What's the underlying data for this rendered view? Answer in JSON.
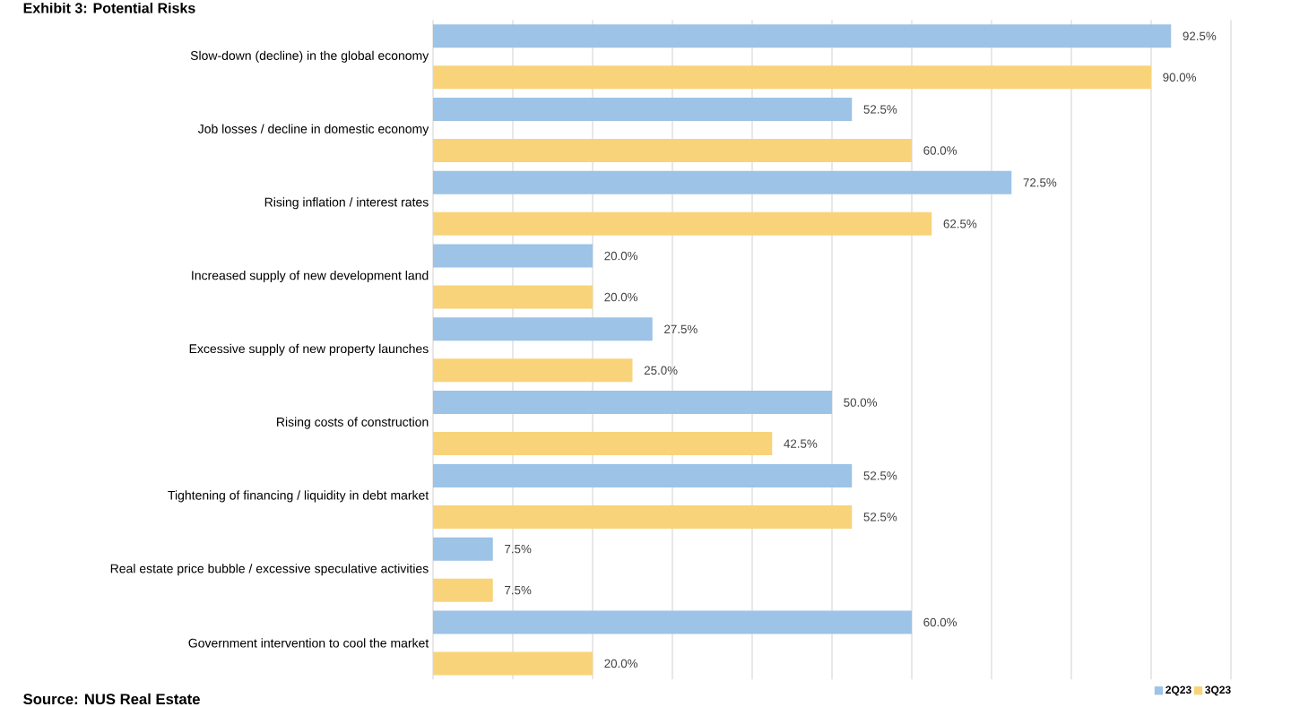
{
  "chart_data": {
    "type": "bar",
    "orientation": "horizontal",
    "title": "Exhibit 3: Potential Risks",
    "categories": [
      "Slow-down (decline) in the global economy",
      "Job losses / decline in domestic economy",
      "Rising inflation / interest rates",
      "Increased supply of new development land",
      "Excessive supply of new property launches",
      "Rising costs of construction",
      "Tightening of financing / liquidity in debt market",
      "Real estate price bubble / excessive speculative activities",
      "Government intervention to cool the market"
    ],
    "series": [
      {
        "name": "2Q23",
        "color": "#9dc3e6",
        "values": [
          92.5,
          52.5,
          72.5,
          20.0,
          27.5,
          50.0,
          52.5,
          7.5,
          60.0
        ],
        "value_labels": [
          "92.5%",
          "52.5%",
          "72.5%",
          "20.0%",
          "27.5%",
          "50.0%",
          "52.5%",
          "7.5%",
          "60.0%"
        ]
      },
      {
        "name": "3Q23",
        "color": "#f8d37a",
        "values": [
          90.0,
          60.0,
          62.5,
          20.0,
          25.0,
          42.5,
          52.5,
          7.5,
          20.0
        ],
        "value_labels": [
          "90.0%",
          "60.0%",
          "62.5%",
          "20.0%",
          "25.0%",
          "42.5%",
          "52.5%",
          "7.5%",
          "20.0%"
        ]
      }
    ],
    "xlim": [
      0,
      100
    ],
    "xticks": [
      {
        "value": 0,
        "label": null
      },
      {
        "value": 10,
        "label": null
      },
      {
        "value": 20,
        "label": null
      },
      {
        "value": 30,
        "label": null
      },
      {
        "value": 40,
        "label": null
      },
      {
        "value": 50,
        "label": null
      },
      {
        "value": 60,
        "label": null
      },
      {
        "value": 70,
        "label": null
      },
      {
        "value": 80,
        "label": null
      },
      {
        "value": 90,
        "label": null
      },
      {
        "value": 100,
        "label": null
      }
    ],
    "tick_labels": "y",
    "grid": "x",
    "legend": "bottom right",
    "annotations": [
      "Source: NUS Real Estate"
    ]
  }
}
